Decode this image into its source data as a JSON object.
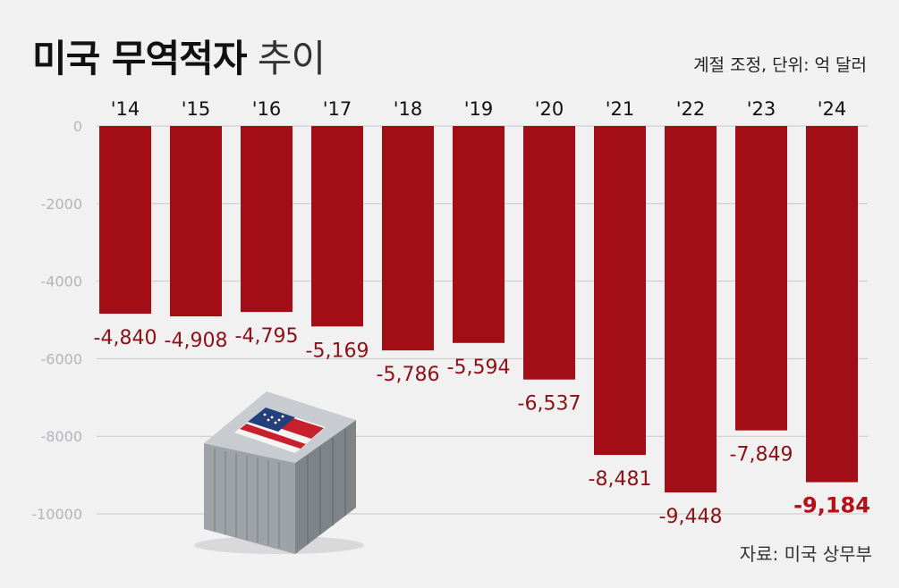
{
  "title": {
    "bold": "미국 무역적자",
    "light": "추이"
  },
  "unit_note": "계절 조정, 단위: 억 달러",
  "source": "자료: 미국 상무부",
  "colors": {
    "bar": "#a30e16",
    "grid": "#c9c9cc",
    "value_label": "#8c1117",
    "highlight": "#b31019",
    "background": "#f1f1f2"
  },
  "chart_data": {
    "type": "bar",
    "categories": [
      "'14",
      "'15",
      "'16",
      "'17",
      "'18",
      "'19",
      "'20",
      "'21",
      "'22",
      "'23",
      "'24"
    ],
    "values": [
      -4840,
      -4908,
      -4795,
      -5169,
      -5786,
      -5594,
      -6537,
      -8481,
      -9448,
      -7849,
      -9184
    ],
    "value_labels": [
      "-4,840",
      "-4,908",
      "-4,795",
      "-5,169",
      "-5,786",
      "-5,594",
      "-6,537",
      "-8,481",
      "-9,448",
      "-7,849",
      "-9,184"
    ],
    "highlight_index": 10,
    "ylim": [
      -10000,
      0
    ],
    "yticks": [
      0,
      -2000,
      -4000,
      -6000,
      -8000,
      -10000
    ],
    "ytick_labels": [
      "0",
      "-2000",
      "-4000",
      "-6000",
      "-8000",
      "-10000"
    ],
    "grid": true,
    "category_axis": "top"
  },
  "illustration": {
    "name": "shipping-container-with-us-flag"
  }
}
